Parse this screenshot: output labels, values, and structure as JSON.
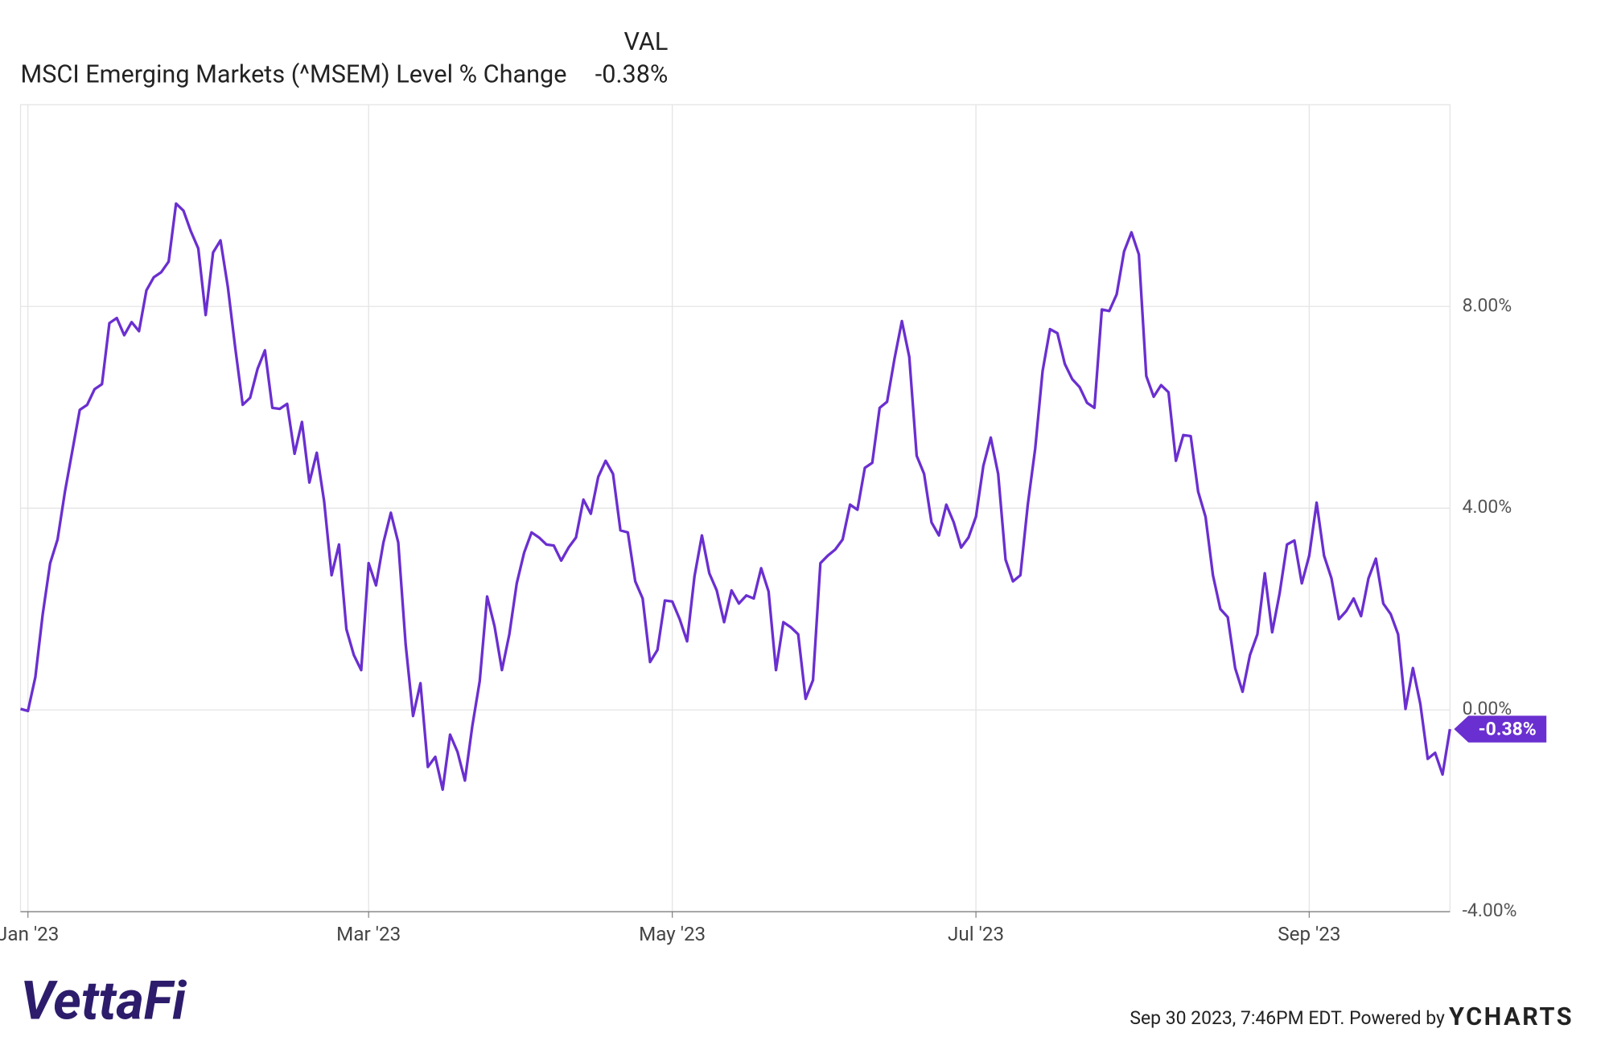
{
  "chart_data": {
    "type": "line",
    "title": "MSCI Emerging Markets (^MSEM) Level % Change",
    "column_header": "VAL",
    "categories": [
      null,
      "Jan '23",
      null,
      null,
      null,
      null,
      null,
      null,
      null,
      null,
      null,
      null,
      null,
      null,
      null,
      null,
      null,
      null,
      null,
      null,
      null,
      null,
      null,
      null,
      null,
      null,
      null,
      null,
      null,
      null,
      null,
      null,
      null,
      null,
      null,
      null,
      null,
      null,
      null,
      null,
      null,
      null,
      null,
      null,
      null,
      null,
      null,
      "Mar '23",
      null,
      null,
      null,
      null,
      null,
      null,
      null,
      null,
      null,
      null,
      null,
      null,
      null,
      null,
      null,
      null,
      null,
      null,
      null,
      null,
      null,
      null,
      null,
      null,
      null,
      null,
      null,
      null,
      null,
      null,
      null,
      null,
      null,
      null,
      null,
      null,
      null,
      null,
      null,
      null,
      "May '23",
      null,
      null,
      null,
      null,
      null,
      null,
      null,
      null,
      null,
      null,
      null,
      null,
      null,
      null,
      null,
      null,
      null,
      null,
      null,
      null,
      null,
      null,
      null,
      null,
      null,
      null,
      null,
      null,
      null,
      null,
      null,
      null,
      null,
      null,
      null,
      null,
      null,
      null,
      null,
      null,
      "Jul '23",
      null,
      null,
      null,
      null,
      null,
      null,
      null,
      null,
      null,
      null,
      null,
      null,
      null,
      null,
      null,
      null,
      null,
      null,
      null,
      null,
      null,
      null,
      null,
      null,
      null,
      null,
      null,
      null,
      null,
      null,
      null,
      null,
      null,
      null,
      null,
      null,
      null,
      null,
      null,
      null,
      null,
      null,
      null,
      null,
      "Sep '23",
      null,
      null,
      null,
      null,
      null,
      null,
      null,
      null,
      null,
      null,
      null,
      null,
      null,
      null,
      null,
      null,
      null,
      null,
      null
    ],
    "series": [
      {
        "name": "MSCI Emerging Markets (^MSEM) Level % Change",
        "color": "#6a2fd0",
        "values": [
          0.02,
          -0.02,
          0.65,
          1.9,
          2.91,
          3.38,
          4.33,
          5.14,
          5.95,
          6.05,
          6.36,
          6.46,
          7.67,
          7.77,
          7.43,
          7.69,
          7.51,
          8.32,
          8.58,
          8.68,
          8.89,
          10.04,
          9.9,
          9.49,
          9.15,
          7.83,
          9.07,
          9.31,
          8.38,
          7.17,
          6.05,
          6.19,
          6.76,
          7.13,
          5.99,
          5.97,
          6.07,
          5.08,
          5.71,
          4.51,
          5.1,
          4.13,
          2.67,
          3.28,
          1.6,
          1.09,
          0.79,
          2.91,
          2.47,
          3.32,
          3.91,
          3.32,
          1.3,
          -0.12,
          0.53,
          -1.13,
          -0.93,
          -1.58,
          -0.49,
          -0.83,
          -1.4,
          -0.32,
          0.57,
          2.25,
          1.66,
          0.79,
          1.5,
          2.51,
          3.12,
          3.52,
          3.42,
          3.28,
          3.26,
          2.96,
          3.22,
          3.42,
          4.17,
          3.89,
          4.62,
          4.94,
          4.68,
          3.56,
          3.52,
          2.55,
          2.21,
          0.95,
          1.19,
          2.17,
          2.15,
          1.8,
          1.36,
          2.65,
          3.46,
          2.71,
          2.37,
          1.74,
          2.37,
          2.11,
          2.27,
          2.21,
          2.81,
          2.35,
          0.79,
          1.74,
          1.64,
          1.5,
          0.22,
          0.59,
          2.91,
          3.06,
          3.18,
          3.38,
          4.07,
          3.97,
          4.8,
          4.9,
          5.99,
          6.11,
          6.96,
          7.71,
          7.0,
          5.04,
          4.68,
          3.72,
          3.46,
          4.07,
          3.72,
          3.22,
          3.42,
          3.83,
          4.84,
          5.4,
          4.68,
          2.98,
          2.55,
          2.67,
          4.07,
          5.18,
          6.72,
          7.55,
          7.47,
          6.86,
          6.56,
          6.4,
          6.09,
          5.99,
          7.94,
          7.91,
          8.24,
          9.09,
          9.47,
          9.03,
          6.62,
          6.21,
          6.44,
          6.3,
          4.94,
          5.45,
          5.43,
          4.33,
          3.83,
          2.67,
          2.0,
          1.84,
          0.83,
          0.36,
          1.09,
          1.5,
          2.71,
          1.54,
          2.31,
          3.28,
          3.36,
          2.51,
          3.06,
          4.11,
          3.06,
          2.61,
          1.8,
          1.96,
          2.21,
          1.86,
          2.61,
          3.0,
          2.11,
          1.9,
          1.5,
          0.02,
          0.83,
          0.12,
          -0.97,
          -0.85,
          -1.28,
          -0.38
        ],
        "value_labels": [
          null,
          null,
          null,
          null,
          null,
          null,
          null,
          null,
          null,
          null,
          null,
          null,
          null,
          null,
          null,
          null,
          null,
          null,
          null,
          null,
          null,
          null,
          null,
          null,
          null,
          null,
          null,
          null,
          null,
          null,
          null,
          null,
          null,
          null,
          null,
          null,
          null,
          null,
          null,
          null,
          null,
          null,
          null,
          null,
          null,
          null,
          null,
          null,
          null,
          null,
          null,
          null,
          null,
          null,
          null,
          null,
          null,
          null,
          null,
          null,
          null,
          null,
          null,
          null,
          null,
          null,
          null,
          null,
          null,
          null,
          null,
          null,
          null,
          null,
          null,
          null,
          null,
          null,
          null,
          null,
          null,
          null,
          null,
          null,
          null,
          null,
          null,
          null,
          null,
          null,
          null,
          null,
          null,
          null,
          null,
          null,
          null,
          null,
          null,
          null,
          null,
          null,
          null,
          null,
          null,
          null,
          null,
          null,
          null,
          null,
          null,
          null,
          null,
          null,
          null,
          null,
          null,
          null,
          null,
          null,
          null,
          null,
          null,
          null,
          null,
          null,
          null,
          null,
          null,
          null,
          null,
          null,
          null,
          null,
          null,
          null,
          null,
          null,
          null,
          null,
          null,
          null,
          null,
          null,
          null,
          null,
          null,
          null,
          null,
          null,
          null,
          null,
          null,
          null,
          null,
          null,
          null,
          null,
          null,
          null,
          null,
          null,
          null,
          null,
          null,
          null,
          null,
          null,
          null,
          null,
          null,
          null,
          null,
          null,
          null,
          null,
          null,
          null,
          null,
          null,
          null,
          null,
          null,
          null,
          null,
          null,
          null,
          null,
          null,
          null,
          null,
          null,
          null,
          "-0.38%"
        ]
      }
    ],
    "ylim": [
      -4,
      12
    ],
    "yticks": [
      {
        "value": -4,
        "label": "-4.00%"
      },
      {
        "value": 0,
        "label": "0.00%"
      },
      {
        "value": 4,
        "label": "4.00%"
      },
      {
        "value": 8,
        "label": "8.00%"
      }
    ],
    "grid": true
  },
  "footer": {
    "timestamp": "Sep 30 2023, 7:46PM EDT. Powered by",
    "brand": "YCHARTS",
    "logo": "VettaFi"
  }
}
